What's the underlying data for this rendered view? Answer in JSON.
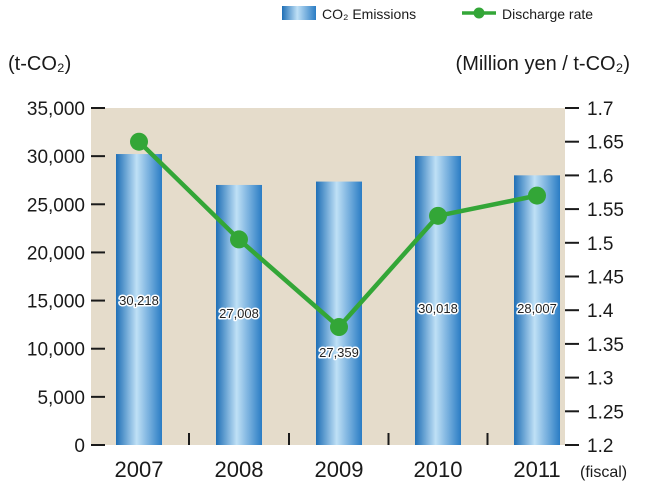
{
  "chart_data": {
    "type": "bar+line",
    "categories": [
      "2007",
      "2008",
      "2009",
      "2010",
      "2011"
    ],
    "x_suffix": "(fiscal)",
    "series": [
      {
        "name": "CO₂ Emissions",
        "kind": "bar",
        "axis": "left",
        "values": [
          30218,
          27008,
          27359,
          30018,
          28007
        ],
        "labels": [
          "30,218",
          "27,008",
          "27,359",
          "30,018",
          "28,007"
        ],
        "color": "#3a8fd0"
      },
      {
        "name": "Discharge rate",
        "kind": "line",
        "axis": "right",
        "values": [
          1.65,
          1.505,
          1.375,
          1.54,
          1.57
        ],
        "color": "#33a637"
      }
    ],
    "y_left": {
      "unit": "(t-CO₂)",
      "min": 0,
      "max": 35000,
      "ticks": [
        0,
        5000,
        10000,
        15000,
        20000,
        25000,
        30000,
        35000
      ],
      "tick_labels": [
        "0",
        "5,000",
        "10,000",
        "15,000",
        "20,000",
        "25,000",
        "30,000",
        "35,000"
      ]
    },
    "y_right": {
      "unit": "(Million yen / t-CO₂)",
      "min": 1.2,
      "max": 1.7,
      "ticks": [
        1.2,
        1.25,
        1.3,
        1.35,
        1.4,
        1.45,
        1.5,
        1.55,
        1.6,
        1.65,
        1.7
      ],
      "tick_labels": [
        "1.2",
        "1.25",
        "1.3",
        "1.35",
        "1.4",
        "1.45",
        "1.5",
        "1.55",
        "1.6",
        "1.65",
        "1.7"
      ]
    },
    "legend": {
      "position": "top-right"
    },
    "plot_background": "#e5dccb",
    "grid": false
  }
}
